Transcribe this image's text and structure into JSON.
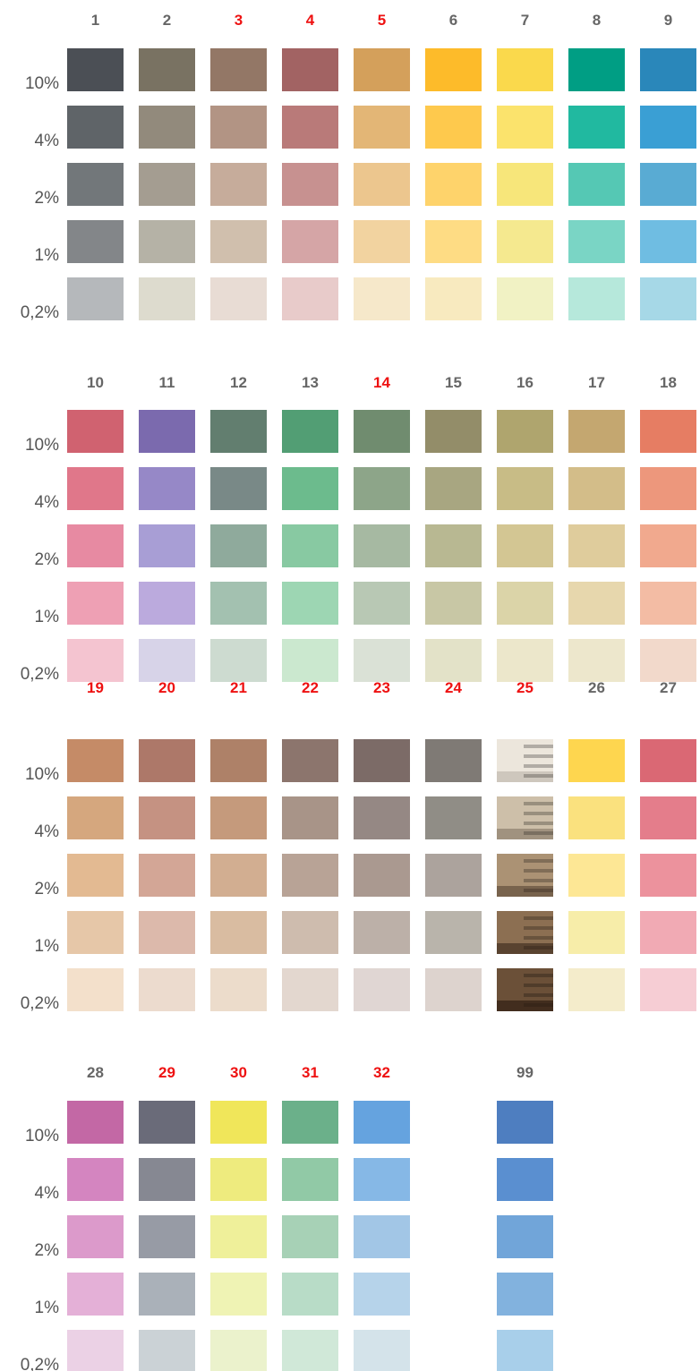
{
  "highlight_color": "#ee1111",
  "blocks": [
    {
      "rows": [
        "10%",
        "4%",
        "2%",
        "1%",
        "0,2%"
      ],
      "columns": [
        {
          "label": "1",
          "highlight": false,
          "colors": [
            "#4b4f55",
            "#5f6468",
            "#72777a",
            "#838689",
            "#b5b8bb"
          ]
        },
        {
          "label": "2",
          "highlight": false,
          "colors": [
            "#797262",
            "#928a7c",
            "#a49d91",
            "#b5b2a6",
            "#dddbce"
          ]
        },
        {
          "label": "3",
          "highlight": true,
          "colors": [
            "#937766",
            "#b29484",
            "#c6ac9b",
            "#d0bfad",
            "#e8dcd4"
          ]
        },
        {
          "label": "4",
          "highlight": true,
          "colors": [
            "#a26363",
            "#b97a79",
            "#c79190",
            "#d5a5a6",
            "#e8cbca"
          ]
        },
        {
          "label": "5",
          "highlight": true,
          "colors": [
            "#d4a05b",
            "#e3b676",
            "#ecc68e",
            "#f2d3a0",
            "#f6e8ca"
          ]
        },
        {
          "label": "6",
          "highlight": false,
          "colors": [
            "#fdbb2a",
            "#fec94d",
            "#fed36b",
            "#fedc84",
            "#f8eabf"
          ]
        },
        {
          "label": "7",
          "highlight": false,
          "colors": [
            "#fad94c",
            "#fbe36c",
            "#f7e67a",
            "#f5e98f",
            "#f1f2c4"
          ]
        },
        {
          "label": "8",
          "highlight": false,
          "colors": [
            "#009e84",
            "#21b9a0",
            "#55c8b4",
            "#7ad5c5",
            "#b6e8db"
          ]
        },
        {
          "label": "9",
          "highlight": false,
          "colors": [
            "#2a87ba",
            "#3a9fd4",
            "#59abd3",
            "#6fbde2",
            "#a6d8e7"
          ]
        }
      ]
    },
    {
      "rows": [
        "10%",
        "4%",
        "2%",
        "1%",
        "0,2%"
      ],
      "columns": [
        {
          "label": "10",
          "highlight": false,
          "colors": [
            "#d06270",
            "#e0778a",
            "#e78aa2",
            "#eea0b4",
            "#f4c4d0"
          ]
        },
        {
          "label": "11",
          "highlight": false,
          "colors": [
            "#7b6aae",
            "#9688c7",
            "#a89ed5",
            "#bbaadd",
            "#d7d3e8"
          ]
        },
        {
          "label": "12",
          "highlight": false,
          "colors": [
            "#627e6f",
            "#798987",
            "#8faa9c",
            "#a3c1b0",
            "#cddbd0"
          ]
        },
        {
          "label": "13",
          "highlight": false,
          "colors": [
            "#529e74",
            "#6cbb8d",
            "#88c9a2",
            "#9dd6b3",
            "#cbe8cf"
          ]
        },
        {
          "label": "14",
          "highlight": true,
          "colors": [
            "#708c6f",
            "#8da589",
            "#a6b9a2",
            "#b8c8b4",
            "#dae1d6"
          ]
        },
        {
          "label": "15",
          "highlight": false,
          "colors": [
            "#938d69",
            "#a8a681",
            "#b8b892",
            "#c8c7a5",
            "#e3e2c8"
          ]
        },
        {
          "label": "16",
          "highlight": false,
          "colors": [
            "#afa56e",
            "#c8bc86",
            "#d3c693",
            "#dbd4a8",
            "#ece7cb"
          ]
        },
        {
          "label": "17",
          "highlight": false,
          "colors": [
            "#c4a770",
            "#d3bd89",
            "#dfcc9c",
            "#e7d7ad",
            "#ede7cc"
          ]
        },
        {
          "label": "18",
          "highlight": false,
          "colors": [
            "#e67d63",
            "#ed977c",
            "#f1a98e",
            "#f3bca4",
            "#f2d9cb"
          ]
        }
      ]
    },
    {
      "rows": [
        "10%",
        "4%",
        "2%",
        "1%",
        "0,2%"
      ],
      "columns": [
        {
          "label": "19",
          "highlight": true,
          "colors": [
            "#c58b67",
            "#d5a77e",
            "#e3ba92",
            "#e6c7a8",
            "#f3e0cb"
          ]
        },
        {
          "label": "20",
          "highlight": true,
          "colors": [
            "#ad7869",
            "#c59282",
            "#d3a696",
            "#dcb9ab",
            "#ecdbce"
          ]
        },
        {
          "label": "21",
          "highlight": true,
          "colors": [
            "#ae8168",
            "#c59a7c",
            "#d2ae91",
            "#d9bca1",
            "#ecdccb"
          ]
        },
        {
          "label": "22",
          "highlight": true,
          "colors": [
            "#8c756d",
            "#a89488",
            "#b8a396",
            "#cebcae",
            "#e3d7cf"
          ]
        },
        {
          "label": "23",
          "highlight": true,
          "colors": [
            "#7c6b67",
            "#958884",
            "#aa9990",
            "#bcb0a8",
            "#e0d6d3"
          ]
        },
        {
          "label": "24",
          "highlight": true,
          "colors": [
            "#7f7a75",
            "#908d86",
            "#aca39d",
            "#b9b4ab",
            "#ddd3ce"
          ]
        },
        {
          "label": "25",
          "highlight": true,
          "photo": true,
          "colors": [
            "#ece6dc",
            "#cdbfa9",
            "#ab9274",
            "#8c6f52",
            "#6b5038"
          ]
        },
        {
          "label": "26",
          "highlight": false,
          "colors": [
            "#fed64f",
            "#fae17e",
            "#fde795",
            "#f7eda9",
            "#f4eccb"
          ]
        },
        {
          "label": "27",
          "highlight": false,
          "colors": [
            "#da6874",
            "#e47d8b",
            "#ec929d",
            "#f1aab4",
            "#f6cdd4"
          ]
        }
      ]
    },
    {
      "rows": [
        "10%",
        "4%",
        "2%",
        "1%",
        "0,2%"
      ],
      "columns": [
        {
          "label": "28",
          "highlight": false,
          "colors": [
            "#c368a5",
            "#d485c0",
            "#dc9acb",
            "#e4b0d7",
            "#ebd1e5"
          ]
        },
        {
          "label": "29",
          "highlight": true,
          "colors": [
            "#6a6b79",
            "#868892",
            "#979ba5",
            "#aab1b9",
            "#cbd2d6"
          ]
        },
        {
          "label": "30",
          "highlight": true,
          "colors": [
            "#f0e65a",
            "#eeeb7e",
            "#eff09a",
            "#eff3b4",
            "#ebf2cc"
          ]
        },
        {
          "label": "31",
          "highlight": true,
          "colors": [
            "#6bb08a",
            "#91c9a6",
            "#a7d1b6",
            "#b8dcc7",
            "#d0e8d8"
          ]
        },
        {
          "label": "32",
          "highlight": true,
          "colors": [
            "#65a3df",
            "#86b8e6",
            "#a2c6e6",
            "#b6d3ea",
            "#d4e3ea"
          ]
        },
        null,
        {
          "label": "99",
          "highlight": false,
          "colors": [
            "#4e7ec0",
            "#5a8fd0",
            "#71a5d9",
            "#82b2de",
            "#a8cfea"
          ]
        }
      ]
    }
  ]
}
